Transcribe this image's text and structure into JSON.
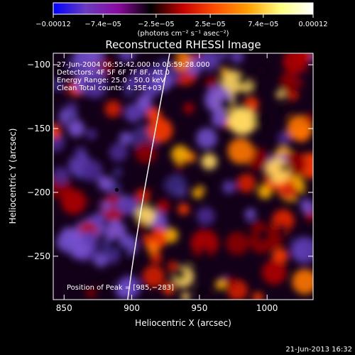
{
  "chart_data": {
    "type": "heatmap",
    "title": "Reconstructed RHESSI Image",
    "xlabel": "Heliocentric X (arcsec)",
    "ylabel": "Heliocentric Y (arcsec)",
    "xlim": [
      842,
      1034
    ],
    "ylim": [
      -284,
      -91
    ],
    "x_ticks": [
      850,
      900,
      950,
      1000
    ],
    "y_ticks": [
      -100,
      -150,
      -200,
      -250
    ],
    "x_tick_labels": [
      "850",
      "900",
      "950",
      "1000"
    ],
    "y_tick_labels": [
      "−100",
      "−150",
      "−200",
      "−250"
    ],
    "colorbar": {
      "tick_labels": [
        "−0.00012",
        "−7.4e−05",
        "−2.5e−05",
        "2.5e−05",
        "7.4e−05",
        "0.00012"
      ],
      "tick_values": [
        -0.00012,
        -7.4e-05,
        -2.5e-05,
        2.5e-05,
        7.4e-05,
        0.00012
      ],
      "range": [
        -0.00012,
        0.00012
      ],
      "unit_label": "(photons cm⁻² s⁻¹ asec⁻²)",
      "colors": [
        "#0000ff",
        "#6a3cc0",
        "#8a0aa0",
        "#000000",
        "#c80000",
        "#ff5000",
        "#ffa000",
        "#ffff80",
        "#ffffff"
      ]
    },
    "annotations": [
      "27-Jun-2004 06:55:42.000 to 06:59:28.000",
      "Detectors: 4F 5F 6F 7F 8F, Att 0",
      "Energy Range: 25.0 - 50.0 keV",
      "Clean     Total counts: 4.35E+03"
    ],
    "peak_label": "Position of Peak = [985,−283]",
    "peak_position": [
      985,
      -283
    ],
    "min_marker": [
      889,
      -198
    ],
    "limb_curve": [
      [
        928,
        -91
      ],
      [
        918,
        -150
      ],
      [
        906,
        -210
      ],
      [
        897,
        -284
      ]
    ],
    "footer_timestamp": "21-Jun-2013 16:32"
  }
}
